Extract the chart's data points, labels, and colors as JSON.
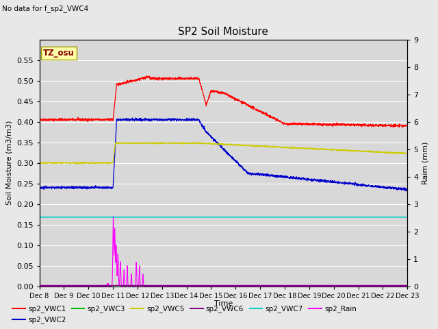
{
  "title": "SP2 Soil Moisture",
  "no_data_text": "No data for f_sp2_VWC4",
  "ylabel_left": "Soil Moisture (m3/m3)",
  "ylabel_right": "Raim (mm)",
  "xlabel": "Time",
  "tz_label": "TZ_osu",
  "ylim_left": [
    0.0,
    0.6
  ],
  "ylim_right": [
    0.0,
    9.0
  ],
  "yticks_left": [
    0.0,
    0.05,
    0.1,
    0.15,
    0.2,
    0.25,
    0.3,
    0.35,
    0.4,
    0.45,
    0.5,
    0.55
  ],
  "yticks_right": [
    0.0,
    1.0,
    2.0,
    3.0,
    4.0,
    5.0,
    6.0,
    7.0,
    8.0,
    9.0
  ],
  "x_tick_labels": [
    "Dec 8",
    "Dec 9",
    "Dec 10",
    "Dec 11",
    "Dec 12",
    "Dec 13",
    "Dec 14",
    "Dec 15",
    "Dec 16",
    "Dec 17",
    "Dec 18",
    "Dec 19",
    "Dec 20",
    "Dec 21",
    "Dec 22",
    "Dec 23"
  ],
  "fig_bg": "#e8e8e8",
  "plot_bg": "#d8d8d8",
  "grid_color": "#ffffff",
  "colors": {
    "VWC1": "#ff0000",
    "VWC2": "#0000cc",
    "VWC3": "#00bb00",
    "VWC5": "#cccc00",
    "VWC6": "#880088",
    "VWC7": "#00cccc",
    "Rain": "#ff00ff"
  },
  "legend_row1": [
    {
      "label": "sp2_VWC1",
      "color": "#ff0000"
    },
    {
      "label": "sp2_VWC2",
      "color": "#0000cc"
    },
    {
      "label": "sp2_VWC3",
      "color": "#00bb00"
    },
    {
      "label": "sp2_VWC5",
      "color": "#cccc00"
    },
    {
      "label": "sp2_VWC6",
      "color": "#880088"
    },
    {
      "label": "sp2_VWC7",
      "color": "#00cccc"
    }
  ],
  "legend_row2": [
    {
      "label": "sp2_Rain",
      "color": "#ff00ff"
    }
  ]
}
